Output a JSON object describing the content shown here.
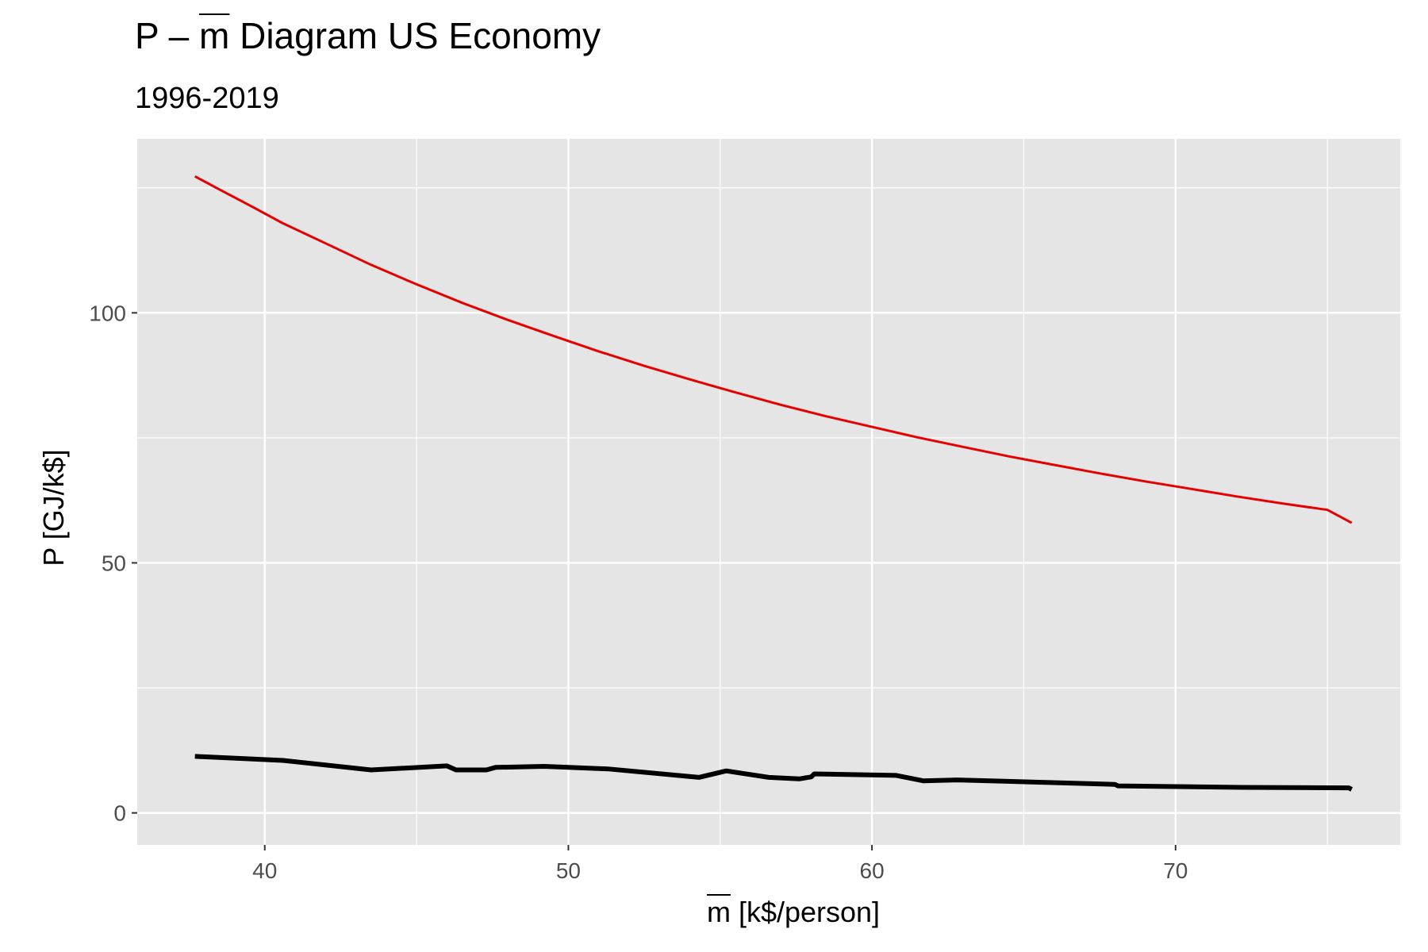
{
  "chart_data": {
    "type": "line",
    "title_prefix": "P – ",
    "title_symbol": "m",
    "title_suffix": " Diagram US Economy",
    "subtitle": "1996-2019",
    "ylabel": "P [GJ/k$]",
    "xlabel_symbol": "m",
    "xlabel_suffix": " [k$/person]",
    "xlim": [
      35.8,
      77.4
    ],
    "ylim": [
      -6.4,
      134.8
    ],
    "x_ticks": [
      40,
      50,
      60,
      70
    ],
    "y_ticks": [
      0,
      50,
      100
    ],
    "grid": true,
    "legend": "none",
    "series": [
      {
        "color": "#e60000",
        "x": [
          37.7,
          38.5,
          39.5,
          40.6,
          42.0,
          43.5,
          45.0,
          46.5,
          48.0,
          49.5,
          51.0,
          52.5,
          54.0,
          55.5,
          57.0,
          58.5,
          60.0,
          61.5,
          63.0,
          64.5,
          66.0,
          67.5,
          69.0,
          70.5,
          72.0,
          73.5,
          75.0,
          75.8
        ],
        "y": [
          127.3,
          124.7,
          121.5,
          117.9,
          113.9,
          109.6,
          105.7,
          102.0,
          98.6,
          95.4,
          92.3,
          89.4,
          86.7,
          84.1,
          81.6,
          79.3,
          77.2,
          75.1,
          73.2,
          71.3,
          69.6,
          67.9,
          66.3,
          64.8,
          63.3,
          61.9,
          60.6,
          58.0
        ]
      },
      {
        "color": "#000000",
        "x": [
          37.7,
          40.6,
          43.5,
          46.0,
          46.3,
          47.3,
          47.6,
          49.2,
          51.3,
          54.3,
          55.2,
          56.6,
          57.6,
          58.0,
          58.1,
          60.8,
          61.7,
          62.8,
          68.0,
          68.1,
          72.2,
          75.7,
          75.8
        ],
        "y": [
          11.3,
          10.5,
          8.6,
          9.4,
          8.6,
          8.6,
          9.1,
          9.3,
          8.8,
          7.1,
          8.4,
          7.1,
          6.8,
          7.2,
          7.8,
          7.5,
          6.4,
          6.6,
          5.7,
          5.4,
          5.1,
          5.0,
          4.7
        ]
      }
    ]
  }
}
